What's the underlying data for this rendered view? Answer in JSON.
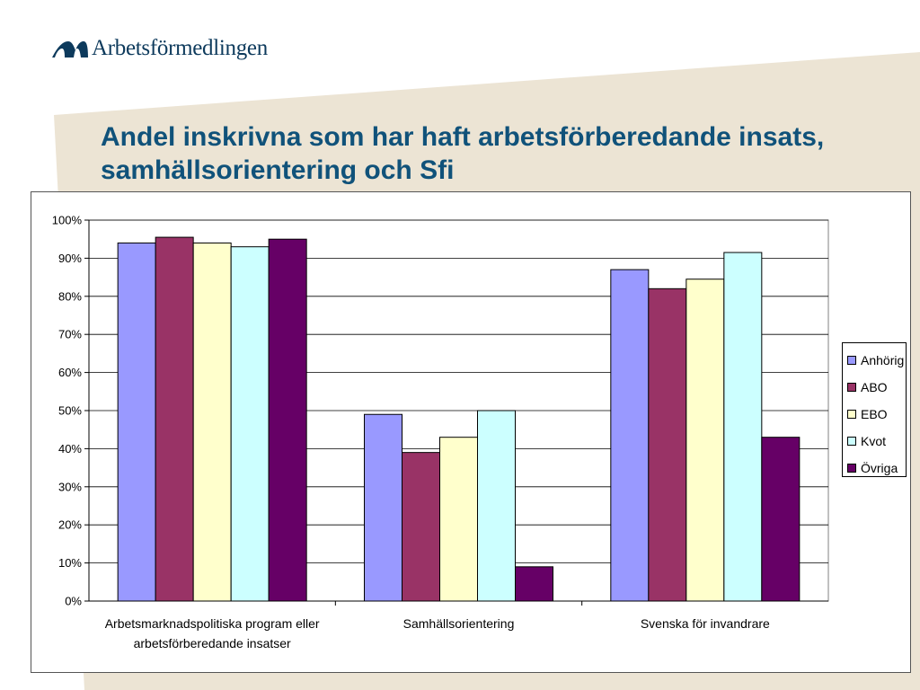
{
  "brand": {
    "logo_text": "Arbetsförmedlingen"
  },
  "slide": {
    "title": "Andel inskrivna som har haft arbetsförberedande insats, samhällsorientering och Sfi"
  },
  "colors": {
    "background_band": "#ece4d4",
    "title": "#10527a",
    "logo": "#0d3a5c",
    "plot_background": "#ffffff",
    "gridline": "#000000"
  },
  "chart_data": {
    "type": "bar",
    "title": "",
    "xlabel": "",
    "ylabel": "",
    "ylim": [
      0,
      100
    ],
    "yticks": [
      "0%",
      "10%",
      "20%",
      "30%",
      "40%",
      "50%",
      "60%",
      "70%",
      "80%",
      "90%",
      "100%"
    ],
    "y_unit": "%",
    "grid": true,
    "legend_position": "right",
    "categories": [
      "Arbetsmarknadspolitiska program eller arbetsförberedande insatser",
      "Samhällsorientering",
      "Svenska för invandrare"
    ],
    "category_lines": [
      [
        "Arbetsmarknadspolitiska program eller",
        "arbetsförberedande insatser"
      ],
      [
        "Samhällsorientering"
      ],
      [
        "Svenska för invandrare"
      ]
    ],
    "series": [
      {
        "name": "Anhörig",
        "color": "#9999ff",
        "values": [
          94,
          49,
          87
        ]
      },
      {
        "name": "ABO",
        "color": "#993366",
        "values": [
          95.5,
          39,
          82
        ]
      },
      {
        "name": "EBO",
        "color": "#ffffcc",
        "values": [
          94,
          43,
          84.5
        ]
      },
      {
        "name": "Kvot",
        "color": "#ccffff",
        "values": [
          93,
          50,
          91.5
        ]
      },
      {
        "name": "Övriga",
        "color": "#660066",
        "values": [
          95,
          9,
          43
        ]
      }
    ]
  }
}
